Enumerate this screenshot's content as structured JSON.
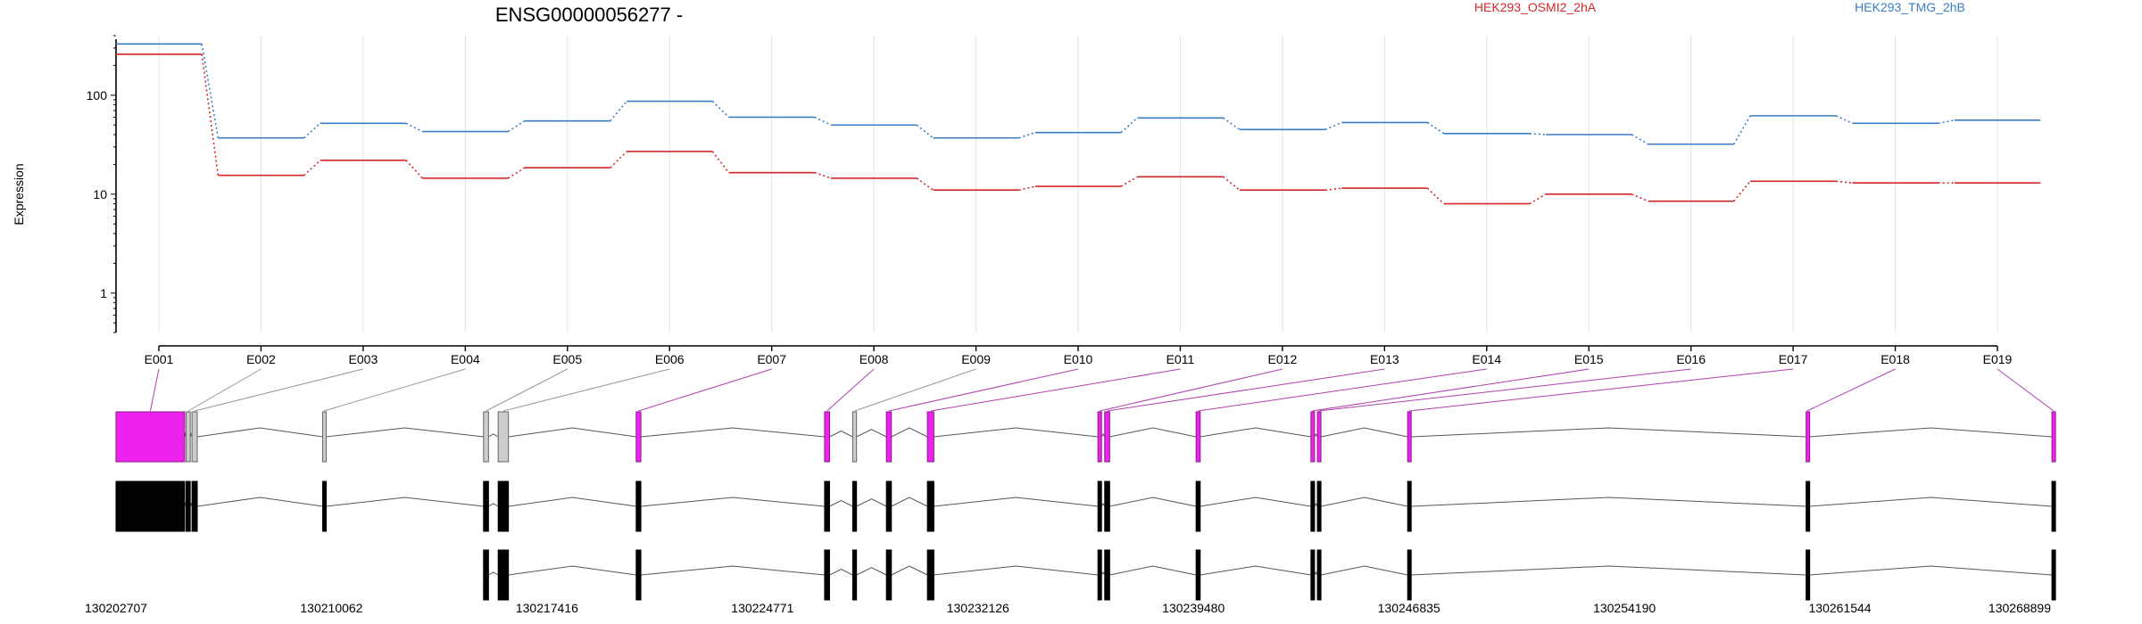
{
  "title": "ENSG00000056277 -",
  "ylabel": "Expression",
  "legend": [
    {
      "name": "HEK293_OSMI2_2hA",
      "color": "#d62728"
    },
    {
      "name": "HEK293_TMG_2hB",
      "color": "#3a7dc4"
    }
  ],
  "colors": {
    "highlight": "#ee22ee",
    "neutral_exon": "#cccccc",
    "transcript": "#000000",
    "grid": "#dfe3f0"
  },
  "chart_data": {
    "type": "line",
    "yscale": "log",
    "ylim": [
      0.4,
      400
    ],
    "yticks": [
      1,
      10,
      100
    ],
    "ytick_labels": [
      "1",
      "10",
      "100"
    ],
    "categories": [
      "E001",
      "E002",
      "E003",
      "E004",
      "E005",
      "E006",
      "E007",
      "E008",
      "E009",
      "E010",
      "E011",
      "E012",
      "E013",
      "E014",
      "E015",
      "E016",
      "E017",
      "E018",
      "E019"
    ],
    "series": [
      {
        "name": "HEK293_OSMI2_2hA",
        "values": [
          260,
          15.5,
          22,
          14.5,
          18.5,
          27,
          16.5,
          14.5,
          11,
          12,
          15,
          11,
          11.5,
          8,
          10,
          8.5,
          13.5,
          13,
          13
        ]
      },
      {
        "name": "HEK293_TMG_2hB",
        "values": [
          330,
          37,
          52,
          43,
          55,
          87,
          60,
          50,
          37,
          42,
          59,
          45,
          53,
          41,
          40,
          32,
          62,
          52,
          56
        ]
      }
    ],
    "genomic_ticks": [
      "130202707",
      "130210062",
      "130217416",
      "130224771",
      "130232126",
      "130239480",
      "130246835",
      "130254190",
      "130261544",
      "130268899"
    ],
    "genomic_range": [
      130202707,
      130268899
    ],
    "exons": [
      {
        "id": "E001",
        "start": 130202707,
        "end": 130205050,
        "highlight": true
      },
      {
        "id": "E002",
        "start": 130205100,
        "end": 130205240,
        "highlight": false
      },
      {
        "id": "E003",
        "start": 130205300,
        "end": 130205480,
        "highlight": false
      },
      {
        "id": "E004",
        "start": 130209760,
        "end": 130209840,
        "highlight": false
      },
      {
        "id": "E005",
        "start": 130215250,
        "end": 130215420,
        "highlight": false
      },
      {
        "id": "E006",
        "start": 130215750,
        "end": 130216100,
        "highlight": false
      },
      {
        "id": "E007",
        "start": 130220460,
        "end": 130220620,
        "highlight": true
      },
      {
        "id": "E008",
        "start": 130226890,
        "end": 130227060,
        "highlight": true
      },
      {
        "id": "E009",
        "start": 130227850,
        "end": 130227980,
        "highlight": false
      },
      {
        "id": "E010",
        "start": 130229000,
        "end": 130229170,
        "highlight": true
      },
      {
        "id": "E011",
        "start": 130230400,
        "end": 130230620,
        "highlight": true
      },
      {
        "id": "E012",
        "start": 130236220,
        "end": 130236340,
        "highlight": true
      },
      {
        "id": "E013",
        "start": 130236450,
        "end": 130236620,
        "highlight": true
      },
      {
        "id": "E014",
        "start": 130239570,
        "end": 130239710,
        "highlight": true
      },
      {
        "id": "E015",
        "start": 130243490,
        "end": 130243570,
        "highlight": true
      },
      {
        "id": "E016",
        "start": 130243710,
        "end": 130243800,
        "highlight": true
      },
      {
        "id": "E017",
        "start": 130246790,
        "end": 130246900,
        "highlight": true
      },
      {
        "id": "E018",
        "start": 130260390,
        "end": 130260450,
        "highlight": true
      },
      {
        "id": "E019",
        "start": 130268780,
        "end": 130268899,
        "highlight": true
      }
    ],
    "transcripts": [
      {
        "exons": [
          "E001",
          "E002",
          "E003",
          "E004",
          "E005",
          "E006",
          "E007",
          "E008",
          "E009",
          "E010",
          "E011",
          "E012",
          "E013",
          "E014",
          "E015",
          "E016",
          "E017",
          "E018",
          "E019"
        ]
      },
      {
        "exons": [
          "E001",
          "E002",
          "E003",
          "E004",
          "E005",
          "E006",
          "E007",
          "E008",
          "E009",
          "E010",
          "E011",
          "E012",
          "E013",
          "E014",
          "E015",
          "E016",
          "E017",
          "E018",
          "E019"
        ]
      },
      {
        "exons": [
          "E005",
          "E006",
          "E007",
          "E008",
          "E009",
          "E010",
          "E011",
          "E012",
          "E013",
          "E014",
          "E015",
          "E016",
          "E017",
          "E018",
          "E019"
        ]
      }
    ]
  }
}
